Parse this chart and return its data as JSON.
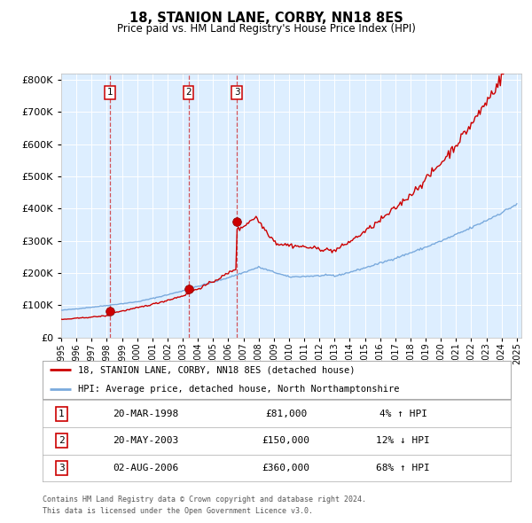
{
  "title": "18, STANION LANE, CORBY, NN18 8ES",
  "subtitle": "Price paid vs. HM Land Registry's House Price Index (HPI)",
  "legend_line1": "18, STANION LANE, CORBY, NN18 8ES (detached house)",
  "legend_line2": "HPI: Average price, detached house, North Northamptonshire",
  "footer1": "Contains HM Land Registry data © Crown copyright and database right 2024.",
  "footer2": "This data is licensed under the Open Government Licence v3.0.",
  "transactions": [
    {
      "num": 1,
      "date": "20-MAR-1998",
      "price": 81000,
      "pct": "4%",
      "dir": "↑",
      "year": 1998.22
    },
    {
      "num": 2,
      "date": "20-MAY-2003",
      "price": 150000,
      "pct": "12%",
      "dir": "↓",
      "year": 2003.38
    },
    {
      "num": 3,
      "date": "02-AUG-2006",
      "price": 360000,
      "pct": "68%",
      "dir": "↑",
      "year": 2006.58
    }
  ],
  "hpi_color": "#7aaadd",
  "price_color": "#cc0000",
  "plot_bg": "#ddeeff",
  "ylim": [
    0,
    820000
  ],
  "yticks": [
    0,
    100000,
    200000,
    300000,
    400000,
    500000,
    600000,
    700000,
    800000
  ],
  "trans_prices": [
    81000,
    150000,
    360000
  ],
  "trans_years": [
    1998.22,
    2003.38,
    2006.58
  ]
}
